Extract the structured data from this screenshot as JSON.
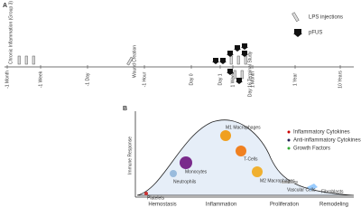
{
  "panel_a": {
    "letter": "A",
    "timeline": [
      "-1 Month",
      "-1 Week",
      "-1 Day",
      "-1 Hour",
      "Day 0",
      "Day 1",
      "1 Week",
      "1 Month",
      "1 Year",
      "10 Years"
    ],
    "annotations": [
      "Chronic Inflammation (Group 3)",
      "Wound Creation",
      "Day 16 Terminal Study"
    ],
    "legend": [
      "LPS injections",
      "pFUS"
    ]
  },
  "panel_b": {
    "letter": "B",
    "y_label": "Immune Response",
    "phases": [
      "Hemostasis",
      "Inflammation",
      "Proliferation",
      "Remodeling"
    ],
    "cells": [
      "Platelets",
      "Neutrophils",
      "Monocytes",
      "M1 Macrophages",
      "T-Cells",
      "M2 Macrophages",
      "Vascular Cells",
      "Fibroblasts"
    ],
    "legend": [
      "Inflammatory Cytokines",
      "Anti-inflammatory Cytokines",
      "Growth Factors"
    ]
  }
}
